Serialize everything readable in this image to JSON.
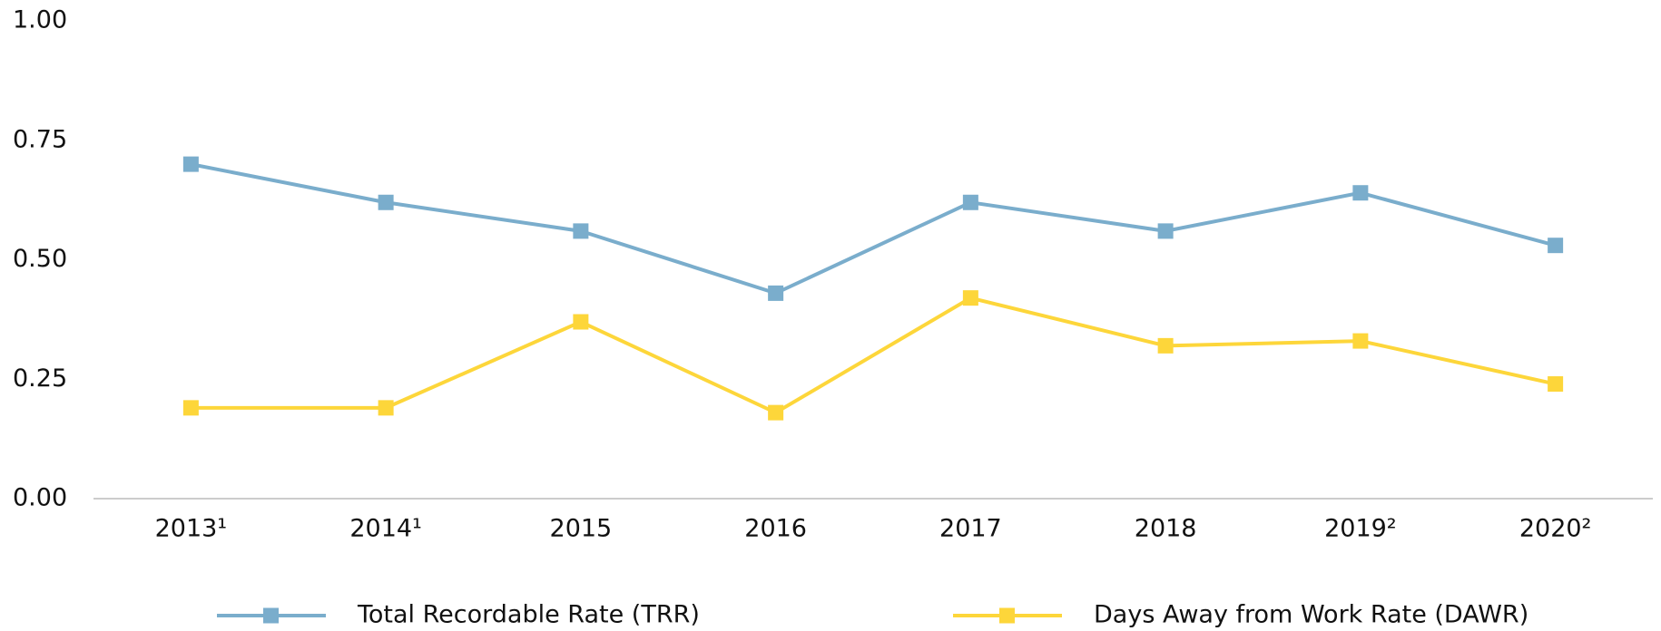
{
  "chart_data": {
    "type": "line",
    "categories": [
      "2013¹",
      "2014¹",
      "2015",
      "2016",
      "2017",
      "2018",
      "2019²",
      "2020²"
    ],
    "series": [
      {
        "name": "Total Recordable Rate (TRR)",
        "color": "#7aadcc",
        "values": [
          0.7,
          0.62,
          0.56,
          0.43,
          0.62,
          0.56,
          0.64,
          0.53
        ]
      },
      {
        "name": "Days Away from Work Rate (DAWR)",
        "color": "#fdd63a",
        "values": [
          0.19,
          0.19,
          0.37,
          0.18,
          0.42,
          0.32,
          0.33,
          0.24
        ]
      }
    ],
    "ylim": [
      0,
      1
    ],
    "yticks": [
      {
        "value": 0,
        "label": "0.00"
      },
      {
        "value": 0.25,
        "label": "0.25"
      },
      {
        "value": 0.5,
        "label": "0.50"
      },
      {
        "value": 0.75,
        "label": "0.75"
      },
      {
        "value": 1,
        "label": "1.00"
      }
    ],
    "grid": false,
    "legend": "bottom"
  }
}
